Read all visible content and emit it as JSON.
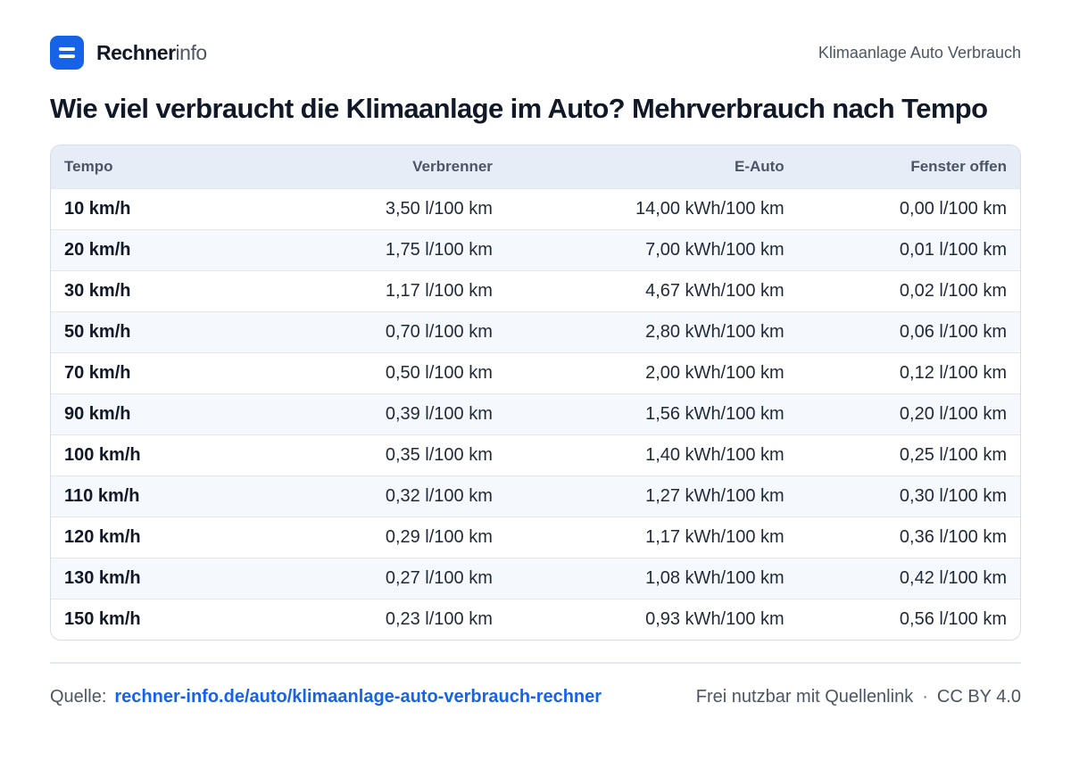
{
  "brand": {
    "name_strong": "Rechner",
    "name_light": "info"
  },
  "header": {
    "topic": "Klimaanlage Auto Verbrauch"
  },
  "page": {
    "title": "Wie viel verbraucht die Klimaanlage im Auto? Mehrverbrauch nach Tempo"
  },
  "table": {
    "columns": [
      "Tempo",
      "Verbrenner",
      "E-Auto",
      "Fenster offen"
    ],
    "rows": [
      [
        "10 km/h",
        "3,50 l/100 km",
        "14,00 kWh/100 km",
        "0,00 l/100 km"
      ],
      [
        "20 km/h",
        "1,75 l/100 km",
        "7,00 kWh/100 km",
        "0,01 l/100 km"
      ],
      [
        "30 km/h",
        "1,17 l/100 km",
        "4,67 kWh/100 km",
        "0,02 l/100 km"
      ],
      [
        "50 km/h",
        "0,70 l/100 km",
        "2,80 kWh/100 km",
        "0,06 l/100 km"
      ],
      [
        "70 km/h",
        "0,50 l/100 km",
        "2,00 kWh/100 km",
        "0,12 l/100 km"
      ],
      [
        "90 km/h",
        "0,39 l/100 km",
        "1,56 kWh/100 km",
        "0,20 l/100 km"
      ],
      [
        "100 km/h",
        "0,35 l/100 km",
        "1,40 kWh/100 km",
        "0,25 l/100 km"
      ],
      [
        "110 km/h",
        "0,32 l/100 km",
        "1,27 kWh/100 km",
        "0,30 l/100 km"
      ],
      [
        "120 km/h",
        "0,29 l/100 km",
        "1,17 kWh/100 km",
        "0,36 l/100 km"
      ],
      [
        "130 km/h",
        "0,27 l/100 km",
        "1,08 kWh/100 km",
        "0,42 l/100 km"
      ],
      [
        "150 km/h",
        "0,23 l/100 km",
        "0,93 kWh/100 km",
        "0,56 l/100 km"
      ]
    ]
  },
  "footer": {
    "source_label": "Quelle:",
    "source_link": "rechner-info.de/auto/klimaanlage-auto-verbrauch-rechner",
    "usage": "Frei nutzbar mit Quellenlink",
    "separator": "·",
    "license": "CC BY 4.0"
  },
  "colors": {
    "accent": "#1763e6",
    "header_bg": "#e6edf7",
    "row_alt": "#f5f8fc"
  }
}
